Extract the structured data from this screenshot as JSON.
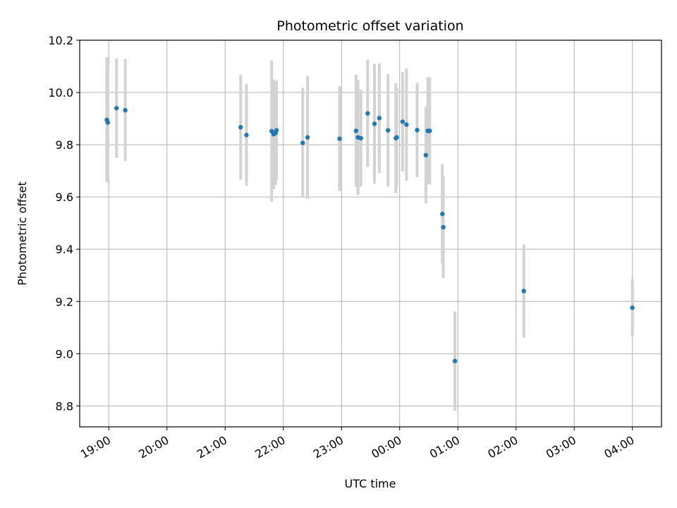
{
  "chart_data": {
    "type": "scatter",
    "title": "Photometric offset variation",
    "xlabel": "UTC time",
    "ylabel": "Photometric offset",
    "x_axis_kind": "time",
    "xlim": [
      "18:30",
      "04:30"
    ],
    "ylim": [
      8.72,
      10.2
    ],
    "x_ticks": [
      "19:00",
      "20:00",
      "21:00",
      "22:00",
      "23:00",
      "00:00",
      "01:00",
      "02:00",
      "03:00",
      "04:00"
    ],
    "y_ticks": [
      "8.8",
      "9.0",
      "9.2",
      "9.4",
      "9.6",
      "9.8",
      "10.0",
      "10.2"
    ],
    "grid": true,
    "colors": {
      "point": "#1f77b4",
      "errorbar": "#d3d3d3",
      "grid": "#b0b0b0"
    },
    "points": [
      {
        "t": "18:58",
        "y": 9.895,
        "err": 0.24
      },
      {
        "t": "18:59",
        "y": 9.885,
        "err": 0.215
      },
      {
        "t": "19:08",
        "y": 9.94,
        "err": 0.19
      },
      {
        "t": "19:17",
        "y": 9.932,
        "err": 0.195
      },
      {
        "t": "21:16",
        "y": 9.867,
        "err": 0.2
      },
      {
        "t": "21:22",
        "y": 9.837,
        "err": 0.195
      },
      {
        "t": "21:48",
        "y": 9.852,
        "err": 0.27
      },
      {
        "t": "21:50",
        "y": 9.84,
        "err": 0.21
      },
      {
        "t": "21:52",
        "y": 9.845,
        "err": 0.2
      },
      {
        "t": "21:53",
        "y": 9.855,
        "err": 0.19
      },
      {
        "t": "22:20",
        "y": 9.807,
        "err": 0.21
      },
      {
        "t": "22:25",
        "y": 9.828,
        "err": 0.235
      },
      {
        "t": "22:58",
        "y": 9.823,
        "err": 0.2
      },
      {
        "t": "23:15",
        "y": 9.853,
        "err": 0.215
      },
      {
        "t": "23:17",
        "y": 9.828,
        "err": 0.22
      },
      {
        "t": "23:20",
        "y": 9.825,
        "err": 0.185
      },
      {
        "t": "23:27",
        "y": 9.92,
        "err": 0.205
      },
      {
        "t": "23:34",
        "y": 9.88,
        "err": 0.23
      },
      {
        "t": "23:39",
        "y": 9.902,
        "err": 0.21
      },
      {
        "t": "23:48",
        "y": 9.855,
        "err": 0.215
      },
      {
        "t": "23:56",
        "y": 9.825,
        "err": 0.21
      },
      {
        "t": "23:57",
        "y": 9.828,
        "err": 0.19
      },
      {
        "t": "00:03",
        "y": 9.888,
        "err": 0.19
      },
      {
        "t": "00:07",
        "y": 9.877,
        "err": 0.215
      },
      {
        "t": "00:18",
        "y": 9.856,
        "err": 0.18
      },
      {
        "t": "00:27",
        "y": 9.76,
        "err": 0.185
      },
      {
        "t": "00:29",
        "y": 9.853,
        "err": 0.205
      },
      {
        "t": "00:31",
        "y": 9.853,
        "err": 0.205
      },
      {
        "t": "00:44",
        "y": 9.535,
        "err": 0.19
      },
      {
        "t": "00:45",
        "y": 9.484,
        "err": 0.195
      },
      {
        "t": "00:57",
        "y": 8.972,
        "err": 0.19
      },
      {
        "t": "02:08",
        "y": 9.24,
        "err": 0.178
      },
      {
        "t": "04:00",
        "y": 9.176,
        "err": 0.11
      }
    ]
  }
}
